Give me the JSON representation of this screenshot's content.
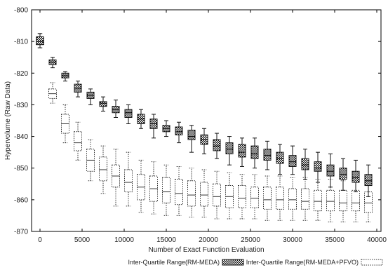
{
  "chart_data": {
    "type": "box",
    "xlabel": "Number of Exact Function Evaluation",
    "ylabel": "Hypervolume (Raw Data)",
    "xlim": [
      -1000,
      40500
    ],
    "ylim": [
      -870,
      -800
    ],
    "xticks": [
      0,
      5000,
      10000,
      15000,
      20000,
      25000,
      30000,
      35000,
      40000
    ],
    "yticks": [
      -870,
      -860,
      -850,
      -840,
      -830,
      -820,
      -810,
      -800
    ],
    "grid": false,
    "legend_position": "bottom",
    "series": [
      {
        "name": "Inter-Quartile Range(RM-MEDA)",
        "style": "checkered-fill",
        "color": "#111111",
        "boxes": [
          {
            "x": 0,
            "q1": -811,
            "median": -810,
            "q3": -808.5,
            "low": -812,
            "high": -807.5
          },
          {
            "x": 1500,
            "q1": -817.3,
            "median": -816.5,
            "q3": -815.8,
            "low": -818.3,
            "high": -815
          },
          {
            "x": 3000,
            "q1": -821.5,
            "median": -820.8,
            "q3": -820,
            "low": -822.5,
            "high": -819.5
          },
          {
            "x": 4500,
            "q1": -826,
            "median": -824.8,
            "q3": -823.5,
            "low": -827.5,
            "high": -822.5
          },
          {
            "x": 6000,
            "q1": -828,
            "median": -827,
            "q3": -826,
            "low": -830,
            "high": -825
          },
          {
            "x": 7500,
            "q1": -830.5,
            "median": -829.5,
            "q3": -829,
            "low": -832,
            "high": -827.5
          },
          {
            "x": 9000,
            "q1": -832.5,
            "median": -831.5,
            "q3": -830.5,
            "low": -834,
            "high": -828.5
          },
          {
            "x": 10500,
            "q1": -834,
            "median": -832.5,
            "q3": -831.5,
            "low": -836,
            "high": -830
          },
          {
            "x": 12000,
            "q1": -836,
            "median": -834.5,
            "q3": -833,
            "low": -837.5,
            "high": -831.5
          },
          {
            "x": 13500,
            "q1": -837.5,
            "median": -836,
            "q3": -834.5,
            "low": -840.5,
            "high": -833
          },
          {
            "x": 15000,
            "q1": -838.5,
            "median": -837.5,
            "q3": -836.5,
            "low": -840,
            "high": -835
          },
          {
            "x": 16500,
            "q1": -839.5,
            "median": -838.5,
            "q3": -837,
            "low": -842,
            "high": -835.5
          },
          {
            "x": 18000,
            "q1": -841,
            "median": -840,
            "q3": -838,
            "low": -845,
            "high": -836.5
          },
          {
            "x": 19500,
            "q1": -842.5,
            "median": -841,
            "q3": -839.5,
            "low": -845.5,
            "high": -837.5
          },
          {
            "x": 21000,
            "q1": -844.5,
            "median": -843,
            "q3": -841,
            "low": -847,
            "high": -839
          },
          {
            "x": 22500,
            "q1": -845.5,
            "median": -844,
            "q3": -842,
            "low": -849,
            "high": -840
          },
          {
            "x": 24000,
            "q1": -846.5,
            "median": -845,
            "q3": -842.5,
            "low": -849.5,
            "high": -840.5
          },
          {
            "x": 25500,
            "q1": -847,
            "median": -845.5,
            "q3": -843,
            "low": -850,
            "high": -840.5
          },
          {
            "x": 27000,
            "q1": -847.5,
            "median": -846,
            "q3": -844,
            "low": -850.5,
            "high": -841.5
          },
          {
            "x": 28500,
            "q1": -848.5,
            "median": -847,
            "q3": -845,
            "low": -852,
            "high": -842.5
          },
          {
            "x": 30000,
            "q1": -849.5,
            "median": -848,
            "q3": -846,
            "low": -852,
            "high": -843
          },
          {
            "x": 31500,
            "q1": -850.5,
            "median": -849,
            "q3": -847,
            "low": -853.5,
            "high": -844
          },
          {
            "x": 33000,
            "q1": -851,
            "median": -850,
            "q3": -848,
            "low": -854.5,
            "high": -845
          },
          {
            "x": 34500,
            "q1": -852.5,
            "median": -851,
            "q3": -849,
            "low": -856,
            "high": -845.5
          },
          {
            "x": 36000,
            "q1": -853.5,
            "median": -852,
            "q3": -850,
            "low": -857,
            "high": -847
          },
          {
            "x": 37500,
            "q1": -854.5,
            "median": -853,
            "q3": -851,
            "low": -857.5,
            "high": -847.5
          },
          {
            "x": 39000,
            "q1": -855.5,
            "median": -854,
            "q3": -852,
            "low": -859,
            "high": -849
          }
        ]
      },
      {
        "name": "Inter-Quartile Range(RM-MEDA+PFVO)",
        "style": "dotted-outline",
        "color": "#333333",
        "boxes": [
          {
            "x": 0,
            "q1": -811,
            "median": -810,
            "q3": -808.5,
            "low": -812,
            "high": -807.5
          },
          {
            "x": 1500,
            "q1": -828,
            "median": -826.5,
            "q3": -825,
            "low": -829.5,
            "high": -823
          },
          {
            "x": 3000,
            "q1": -839,
            "median": -836,
            "q3": -833,
            "low": -842,
            "high": -830
          },
          {
            "x": 4500,
            "q1": -844.5,
            "median": -842,
            "q3": -838.5,
            "low": -847.5,
            "high": -835.5
          },
          {
            "x": 6000,
            "q1": -851,
            "median": -847.5,
            "q3": -844,
            "low": -854,
            "high": -841
          },
          {
            "x": 7500,
            "q1": -854,
            "median": -850.5,
            "q3": -846.5,
            "low": -858,
            "high": -843
          },
          {
            "x": 9000,
            "q1": -856,
            "median": -852.5,
            "q3": -849,
            "low": -862,
            "high": -844
          },
          {
            "x": 10500,
            "q1": -857.5,
            "median": -854.5,
            "q3": -850.5,
            "low": -862,
            "high": -845
          },
          {
            "x": 12000,
            "q1": -860,
            "median": -856,
            "q3": -852,
            "low": -864,
            "high": -847.5
          },
          {
            "x": 13500,
            "q1": -860.5,
            "median": -856.5,
            "q3": -852.5,
            "low": -864.5,
            "high": -848
          },
          {
            "x": 15000,
            "q1": -861,
            "median": -857.5,
            "q3": -853,
            "low": -865,
            "high": -849
          },
          {
            "x": 16500,
            "q1": -861.5,
            "median": -858,
            "q3": -853.5,
            "low": -865,
            "high": -849.5
          },
          {
            "x": 18000,
            "q1": -862,
            "median": -858.5,
            "q3": -854,
            "low": -865.5,
            "high": -850
          },
          {
            "x": 19500,
            "q1": -862,
            "median": -858.5,
            "q3": -854.5,
            "low": -865.5,
            "high": -850.5
          },
          {
            "x": 21000,
            "q1": -862,
            "median": -859,
            "q3": -855,
            "low": -866,
            "high": -851
          },
          {
            "x": 22500,
            "q1": -862.5,
            "median": -859,
            "q3": -855.5,
            "low": -866,
            "high": -851.5
          },
          {
            "x": 24000,
            "q1": -862.5,
            "median": -859.5,
            "q3": -855.5,
            "low": -866,
            "high": -852
          },
          {
            "x": 25500,
            "q1": -862.5,
            "median": -859.5,
            "q3": -856,
            "low": -866,
            "high": -852
          },
          {
            "x": 27000,
            "q1": -863,
            "median": -860,
            "q3": -856,
            "low": -866.5,
            "high": -852.5
          },
          {
            "x": 28500,
            "q1": -863,
            "median": -860,
            "q3": -856,
            "low": -866.5,
            "high": -852.5
          },
          {
            "x": 30000,
            "q1": -863,
            "median": -860,
            "q3": -856.5,
            "low": -866.5,
            "high": -853
          },
          {
            "x": 31500,
            "q1": -863,
            "median": -860.5,
            "q3": -856.5,
            "low": -866.5,
            "high": -853
          },
          {
            "x": 33000,
            "q1": -863.5,
            "median": -860.5,
            "q3": -857,
            "low": -866.5,
            "high": -853.5
          },
          {
            "x": 34500,
            "q1": -863.5,
            "median": -860.5,
            "q3": -857,
            "low": -867,
            "high": -853.5
          },
          {
            "x": 36000,
            "q1": -863.5,
            "median": -861,
            "q3": -857,
            "low": -867,
            "high": -854
          },
          {
            "x": 37500,
            "q1": -863.5,
            "median": -861,
            "q3": -857,
            "low": -867,
            "high": -854
          },
          {
            "x": 39000,
            "q1": -864,
            "median": -861,
            "q3": -857.5,
            "low": -867,
            "high": -854
          }
        ]
      }
    ]
  }
}
